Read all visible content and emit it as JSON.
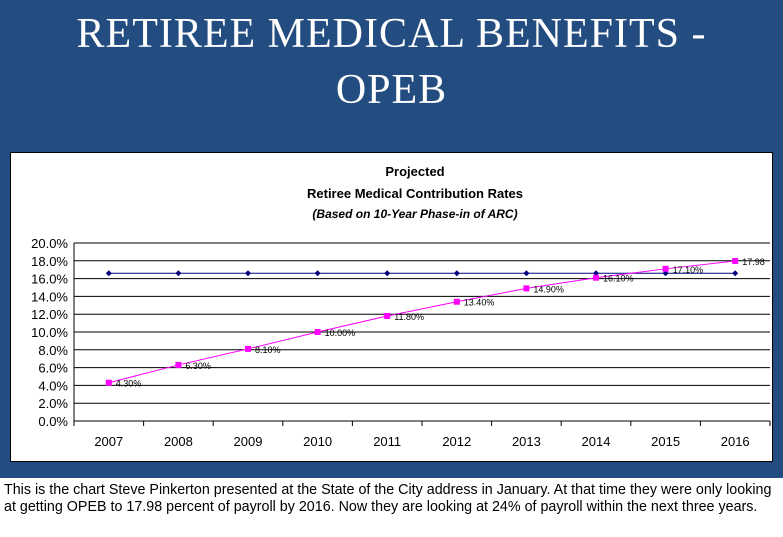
{
  "slide": {
    "title_line1": "RETIREE MEDICAL BENEFITS -",
    "title_line2": "OPEB",
    "caption": "This is the chart Steve Pinkerton presented at the State of the City address in January.  At that time they were only looking at getting OPEB to 17.98 percent of payroll by 2016.  Now they are looking at 24% of payroll within the next three years."
  },
  "colors": {
    "header_bg": "#234c80",
    "series_projected": "#ff00ff",
    "series_arc": "#000080"
  },
  "chart_data": {
    "type": "line",
    "title": "Projected",
    "subtitle": "Retiree Medical Contribution Rates",
    "subtitle2": "(Based on 10-Year Phase-in of ARC)",
    "xlabel": "",
    "ylabel": "",
    "ylim": [
      0,
      20
    ],
    "y_ticks": [
      "0.0%",
      "2.0%",
      "4.0%",
      "6.0%",
      "8.0%",
      "10.0%",
      "12.0%",
      "14.0%",
      "16.0%",
      "18.0%",
      "20.0%"
    ],
    "categories": [
      "2007",
      "2008",
      "2009",
      "2010",
      "2011",
      "2012",
      "2013",
      "2014",
      "2015",
      "2016"
    ],
    "grid": true,
    "legend": "none",
    "series": [
      {
        "values": [
          16.6,
          16.6,
          16.6,
          16.6,
          16.6,
          16.6,
          16.6,
          16.6,
          16.6,
          16.6
        ],
        "marker": "diamond",
        "color": "#000080",
        "labels": []
      },
      {
        "values": [
          4.3,
          6.3,
          8.1,
          10.0,
          11.8,
          13.4,
          14.9,
          16.1,
          17.1,
          17.98
        ],
        "marker": "square",
        "color": "#ff00ff",
        "labels": [
          "4.30%",
          "6.30%",
          "8.10%",
          "10.00%",
          "11.80%",
          "13.40%",
          "14.90%",
          "16.10%",
          "17.10%",
          "17.98"
        ]
      }
    ]
  }
}
